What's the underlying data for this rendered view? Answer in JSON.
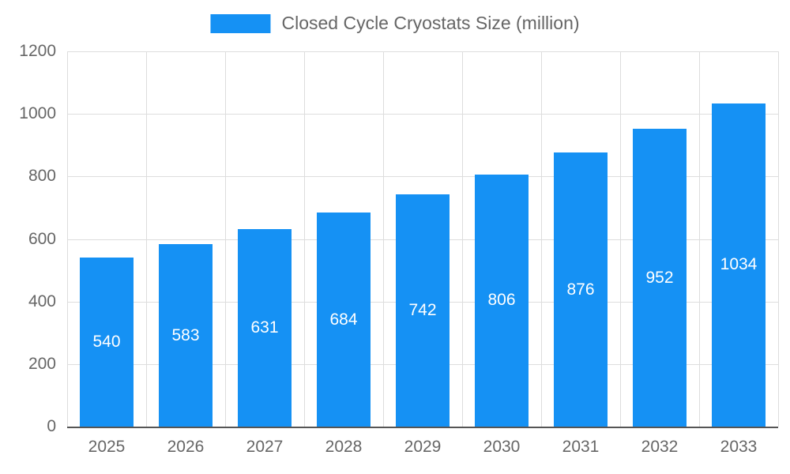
{
  "legend": {
    "label": "Closed Cycle Cryostats Size (million)"
  },
  "colors": {
    "bar": "#1591f4",
    "title_text": "#666666",
    "axis_text": "#666666",
    "grid": "#dddddd",
    "axis_line": "#555555",
    "value_label": "#ffffff"
  },
  "chart_data": {
    "type": "bar",
    "title": "Closed Cycle Cryostats Size (million)",
    "categories": [
      "2025",
      "2026",
      "2027",
      "2028",
      "2029",
      "2030",
      "2031",
      "2032",
      "2033"
    ],
    "values": [
      540,
      583,
      631,
      684,
      742,
      806,
      876,
      952,
      1034
    ],
    "xlabel": "",
    "ylabel": "",
    "ylim": [
      0,
      1200
    ],
    "yticks": [
      0,
      200,
      400,
      600,
      800,
      1000,
      1200
    ],
    "grid": true,
    "legend_position": "top",
    "bar_width_fraction": 0.68
  }
}
